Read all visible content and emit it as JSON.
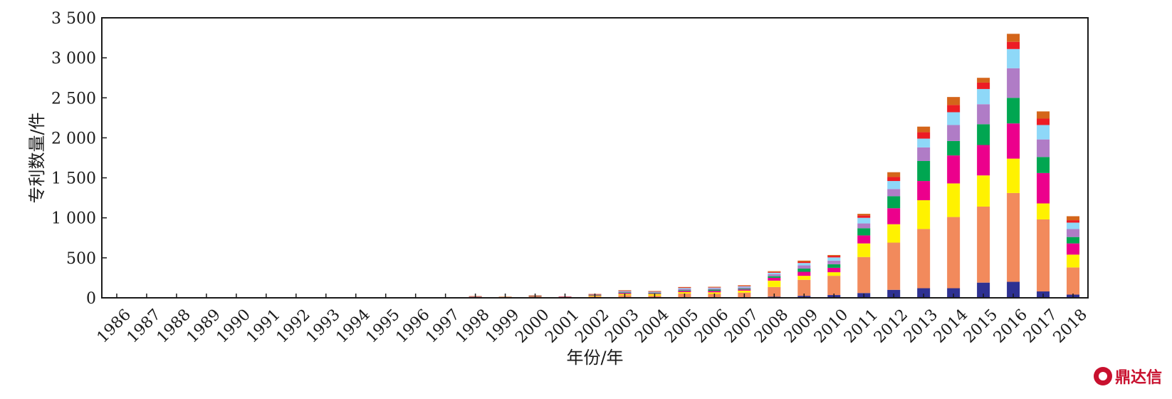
{
  "chart_data": {
    "type": "bar",
    "stacked": true,
    "xlabel": "年份/年",
    "ylabel": "专利数量/件",
    "ylim": [
      0,
      3500
    ],
    "yticks": [
      0,
      500,
      1000,
      1500,
      2000,
      2500,
      3000,
      3500
    ],
    "ytick_labels": [
      "0",
      "500",
      "1 000",
      "1 500",
      "2 000",
      "2 500",
      "3 000",
      "3 500"
    ],
    "categories": [
      "1986",
      "1987",
      "1988",
      "1989",
      "1990",
      "1991",
      "1992",
      "1993",
      "1994",
      "1995",
      "1996",
      "1997",
      "1998",
      "1999",
      "2000",
      "2001",
      "2002",
      "2003",
      "2004",
      "2005",
      "2006",
      "2007",
      "2008",
      "2009",
      "2010",
      "2011",
      "2012",
      "2013",
      "2014",
      "2015",
      "2016",
      "2017",
      "2018"
    ],
    "grid": false,
    "series": [
      {
        "color": "#2e3192",
        "values": [
          0,
          0,
          0,
          0,
          0,
          0,
          0,
          0,
          0,
          0,
          0,
          0,
          1,
          0,
          1,
          0,
          2,
          3,
          2,
          3,
          4,
          5,
          15,
          25,
          35,
          60,
          100,
          120,
          120,
          190,
          200,
          80,
          40
        ]
      },
      {
        "color": "#f28a5c",
        "values": [
          3,
          0,
          0,
          0,
          0,
          0,
          2,
          2,
          0,
          0,
          0,
          0,
          5,
          3,
          12,
          2,
          18,
          30,
          25,
          50,
          45,
          60,
          120,
          200,
          240,
          450,
          590,
          740,
          890,
          950,
          1110,
          900,
          340
        ]
      },
      {
        "color": "#fff200",
        "values": [
          0,
          0,
          0,
          0,
          0,
          0,
          0,
          0,
          0,
          0,
          0,
          0,
          1,
          1,
          5,
          5,
          8,
          15,
          20,
          18,
          20,
          25,
          80,
          50,
          45,
          170,
          230,
          360,
          420,
          390,
          430,
          200,
          160
        ]
      },
      {
        "color": "#ec008c",
        "values": [
          0,
          0,
          0,
          0,
          0,
          0,
          2,
          0,
          0,
          0,
          0,
          0,
          3,
          1,
          2,
          2,
          4,
          12,
          8,
          15,
          18,
          15,
          35,
          50,
          55,
          100,
          200,
          240,
          350,
          380,
          440,
          380,
          140
        ]
      },
      {
        "color": "#00a651",
        "values": [
          0,
          0,
          0,
          0,
          0,
          0,
          0,
          0,
          0,
          0,
          0,
          0,
          2,
          0,
          2,
          4,
          4,
          8,
          7,
          10,
          15,
          10,
          20,
          40,
          45,
          90,
          150,
          250,
          180,
          260,
          320,
          200,
          80
        ]
      },
      {
        "color": "#b07cc6",
        "values": [
          0,
          0,
          0,
          0,
          0,
          0,
          1,
          1,
          1,
          1,
          0,
          0,
          3,
          3,
          3,
          1,
          4,
          10,
          8,
          15,
          15,
          15,
          25,
          40,
          45,
          60,
          90,
          170,
          200,
          250,
          370,
          220,
          100
        ]
      },
      {
        "color": "#8ed8f8",
        "values": [
          0,
          0,
          0,
          0,
          0,
          0,
          1,
          1,
          2,
          2,
          2,
          2,
          2,
          4,
          2,
          2,
          4,
          7,
          8,
          12,
          10,
          13,
          18,
          30,
          40,
          70,
          100,
          110,
          160,
          190,
          240,
          180,
          80
        ]
      },
      {
        "color": "#ed1c24",
        "values": [
          0,
          0,
          0,
          0,
          0,
          0,
          0,
          0,
          0,
          0,
          0,
          0,
          2,
          1,
          1,
          1,
          2,
          5,
          3,
          6,
          6,
          7,
          10,
          15,
          20,
          30,
          50,
          80,
          90,
          80,
          90,
          80,
          30
        ]
      },
      {
        "color": "#d4651a",
        "values": [
          3,
          0,
          0,
          0,
          0,
          0,
          0,
          0,
          0,
          0,
          0,
          0,
          2,
          1,
          2,
          0,
          2,
          5,
          4,
          6,
          5,
          7,
          10,
          15,
          10,
          20,
          60,
          70,
          100,
          60,
          100,
          90,
          50
        ]
      }
    ]
  },
  "logo": {
    "text": "鼎达信"
  }
}
